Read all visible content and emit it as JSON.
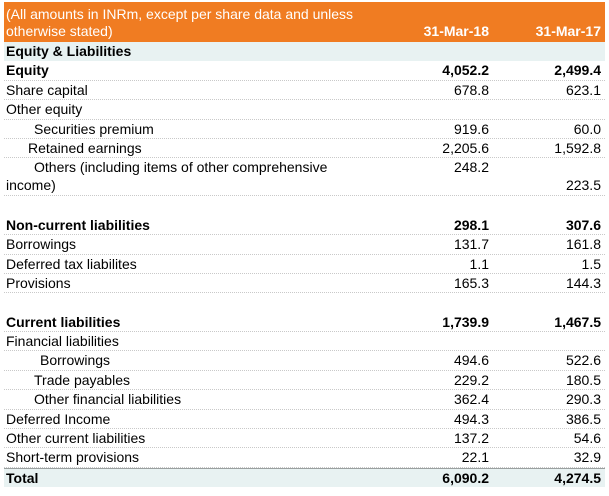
{
  "header": {
    "note": "(All amounts in INRm, except per share data and unless otherwise stated)",
    "col1": "31-Mar-18",
    "col2": "31-Mar-17"
  },
  "rows": {
    "r0": {
      "label": "Equity & Liabilities",
      "v1": "",
      "v2": ""
    },
    "r1": {
      "label": "Equity",
      "v1": "4,052.2",
      "v2": "2,499.4"
    },
    "r2": {
      "label": "Share capital",
      "v1": "678.8",
      "v2": "623.1"
    },
    "r3": {
      "label": "Other equity",
      "v1": "",
      "v2": ""
    },
    "r4": {
      "label": "Securities premium",
      "v1": "919.6",
      "v2": "60.0"
    },
    "r5": {
      "label": "Retained earnings",
      "v1": "2,205.6",
      "v2": "1,592.8"
    },
    "r6": {
      "label": "Others (including items of other comprehensive income)",
      "v1": "248.2",
      "v2": "223.5"
    },
    "r7": {
      "label": "",
      "v1": "",
      "v2": ""
    },
    "r8": {
      "label": "Non-current liabilities",
      "v1": "298.1",
      "v2": "307.6"
    },
    "r9": {
      "label": "Borrowings",
      "v1": "131.7",
      "v2": "161.8"
    },
    "r10": {
      "label": "Deferred tax liabilites",
      "v1": "1.1",
      "v2": "1.5"
    },
    "r11": {
      "label": "Provisions",
      "v1": "165.3",
      "v2": "144.3"
    },
    "r12": {
      "label": "",
      "v1": "",
      "v2": ""
    },
    "r13": {
      "label": "Current liabilities",
      "v1": "1,739.9",
      "v2": "1,467.5"
    },
    "r14": {
      "label": "Financial liabilities",
      "v1": "",
      "v2": ""
    },
    "r15": {
      "label": "Borrowings",
      "v1": "494.6",
      "v2": "522.6"
    },
    "r16": {
      "label": "Trade payables",
      "v1": "229.2",
      "v2": "180.5"
    },
    "r17": {
      "label": "Other financial liabilities",
      "v1": "362.4",
      "v2": "290.3"
    },
    "r18": {
      "label": "Deferred Income",
      "v1": "494.3",
      "v2": "386.5"
    },
    "r19": {
      "label": "Other current liabilities",
      "v1": "137.2",
      "v2": "54.6"
    },
    "r20": {
      "label": "Short-term provisions",
      "v1": "22.1",
      "v2": "32.9"
    },
    "r21": {
      "label": "Total",
      "v1": "6,090.2",
      "v2": "4,274.5"
    }
  },
  "colors": {
    "header_bg": "#f07c22",
    "header_text": "#ffffff",
    "section_bg": "#e8f2f2"
  }
}
